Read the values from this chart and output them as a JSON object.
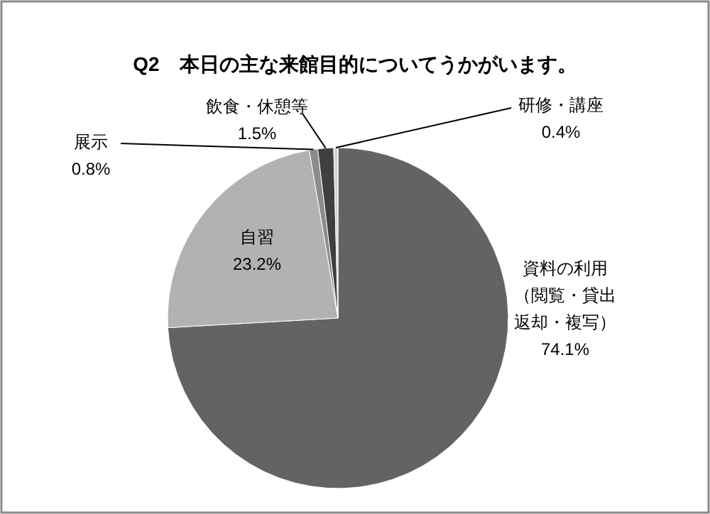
{
  "chart_data": {
    "type": "pie",
    "title": "Q2　本日の主な来館目的についてうかがいます。",
    "categories": [
      "資料の利用（閲覧・貸出返却・複写）",
      "自習",
      "展示",
      "飲食・休憩等",
      "研修・講座"
    ],
    "values": [
      74.1,
      23.2,
      0.8,
      1.5,
      0.4
    ],
    "value_labels": [
      "74.1%",
      "23.2%",
      "0.8%",
      "1.5%",
      "0.4%"
    ],
    "colors": [
      "#636363",
      "#b2b2b2",
      "#8c8c8c",
      "#3f3f3f",
      "#d4d4d4"
    ]
  }
}
